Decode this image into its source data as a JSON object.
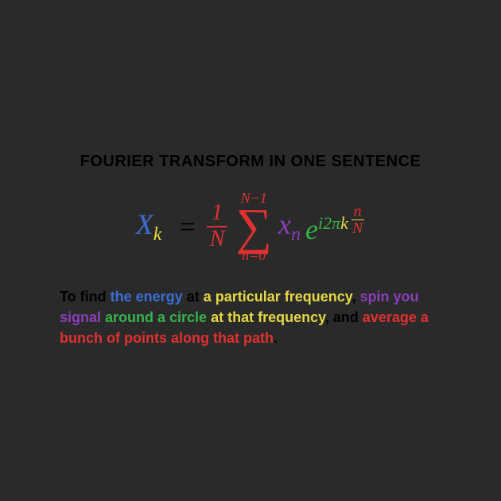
{
  "background_color": "#2a2a2a",
  "title": {
    "text": "FOURIER TRANSFORM IN ONE SENTENCE",
    "color": "#000000",
    "fontsize": 20,
    "weight": "bold"
  },
  "formula": {
    "Xk": {
      "X_color": "#3a6fd8",
      "k_color": "#e6d845",
      "X": "X",
      "k": "k"
    },
    "equals": {
      "symbol": "=",
      "color": "#000000"
    },
    "one_over_N": {
      "numerator": "1",
      "denominator": "N",
      "color": "#e03030"
    },
    "sum": {
      "top": "N−1",
      "symbol": "∑",
      "bottom": "n=0",
      "color": "#e03030"
    },
    "xn": {
      "x": "x",
      "n": "n",
      "color": "#8a3fb8"
    },
    "e": {
      "symbol": "e",
      "color": "#37b34a"
    },
    "exponent": {
      "i": {
        "text": "i",
        "color": "#37b34a"
      },
      "two": {
        "text": "2",
        "color": "#37b34a"
      },
      "pi": {
        "text": "π",
        "color": "#37b34a"
      },
      "k": {
        "text": "k",
        "color": "#e6d845"
      },
      "frac": {
        "n": "n",
        "N": "N",
        "n_color": "#e03030",
        "N_color": "#e03030",
        "bar_color": "#e6d845"
      }
    }
  },
  "explanation": {
    "fontsize": 18,
    "weight": "bold",
    "segments": [
      {
        "text": "To find ",
        "color": "#000000"
      },
      {
        "text": "the energy ",
        "color": "#3a6fd8"
      },
      {
        "text": "at ",
        "color": "#000000"
      },
      {
        "text": "a particular frequency",
        "color": "#e6d845"
      },
      {
        "text": ", ",
        "color": "#000000"
      },
      {
        "text": "spin you signal ",
        "color": "#8a3fb8"
      },
      {
        "text": "around a circle ",
        "color": "#37b34a"
      },
      {
        "text": "at that frequency",
        "color": "#e6d845"
      },
      {
        "text": ", and ",
        "color": "#000000"
      },
      {
        "text": "average a bunch of points along that path",
        "color": "#e03030"
      },
      {
        "text": ".",
        "color": "#000000"
      }
    ]
  }
}
